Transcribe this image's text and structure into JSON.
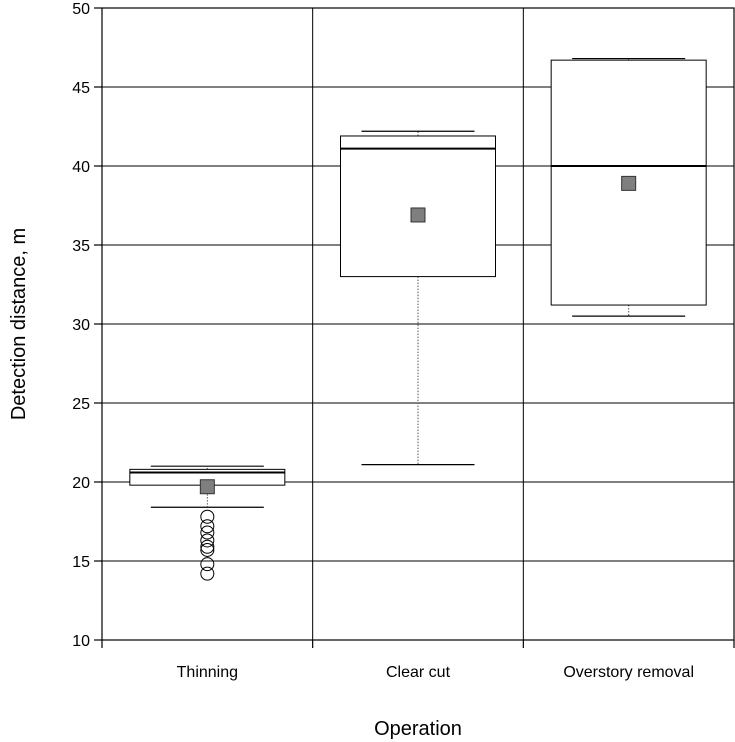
{
  "chart_data": {
    "type": "boxplot",
    "title": "",
    "xlabel": "Operation",
    "ylabel": "Detection distance, m",
    "ylim": [
      10,
      50
    ],
    "yticks": [
      10,
      15,
      20,
      25,
      30,
      35,
      40,
      45,
      50
    ],
    "grid": true,
    "categories": [
      "Thinning",
      "Clear cut",
      "Overstory removal"
    ],
    "boxes": [
      {
        "category": "Thinning",
        "whisker_low": 18.4,
        "q1": 19.8,
        "median": 20.6,
        "q3": 20.8,
        "whisker_high": 21.0,
        "mean": 19.7,
        "outliers": [
          17.8,
          17.2,
          16.8,
          16.3,
          15.9,
          15.7,
          14.8,
          14.2
        ]
      },
      {
        "category": "Clear cut",
        "whisker_low": 21.1,
        "q1": 33.0,
        "median": 41.1,
        "q3": 41.9,
        "whisker_high": 42.2,
        "mean": 36.9,
        "outliers": []
      },
      {
        "category": "Overstory removal",
        "whisker_low": 30.5,
        "q1": 31.2,
        "median": 40.0,
        "q3": 46.7,
        "whisker_high": 46.8,
        "mean": 38.9,
        "outliers": []
      }
    ],
    "colors": {
      "box_fill": "#ffffff",
      "mean_marker": "#7f7f7f",
      "line": "#000000",
      "whisker": "#555555"
    }
  }
}
